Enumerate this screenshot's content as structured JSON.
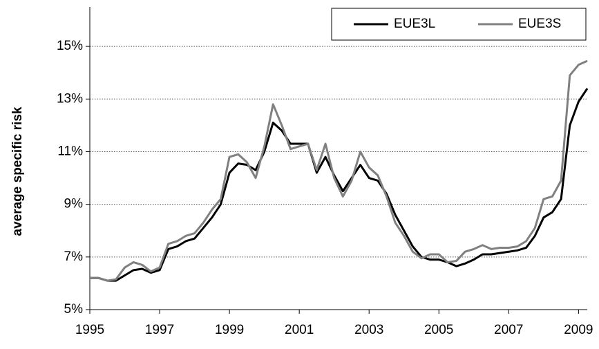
{
  "chart_data": {
    "type": "line",
    "y_label": "average specific risk",
    "x": [
      1995,
      1995.25,
      1995.5,
      1995.75,
      1996,
      1996.25,
      1996.5,
      1996.75,
      1997,
      1997.25,
      1997.5,
      1997.75,
      1998,
      1998.25,
      1998.5,
      1998.75,
      1999,
      1999.25,
      1999.5,
      1999.75,
      2000,
      2000.25,
      2000.5,
      2000.75,
      2001,
      2001.25,
      2001.5,
      2001.75,
      2002,
      2002.25,
      2002.5,
      2002.75,
      2003,
      2003.25,
      2003.5,
      2003.75,
      2004,
      2004.25,
      2004.5,
      2004.75,
      2005,
      2005.25,
      2005.5,
      2005.75,
      2006,
      2006.25,
      2006.5,
      2006.75,
      2007,
      2007.25,
      2007.5,
      2007.75,
      2008,
      2008.25,
      2008.5,
      2008.75,
      2009,
      2009.25
    ],
    "series": [
      {
        "name": "EUE3L",
        "color": "#000000",
        "values": [
          6.2,
          6.2,
          6.1,
          6.1,
          6.3,
          6.5,
          6.55,
          6.4,
          6.5,
          7.3,
          7.4,
          7.6,
          7.7,
          8.1,
          8.5,
          9.0,
          10.2,
          10.55,
          10.5,
          10.3,
          11.0,
          12.1,
          11.8,
          11.3,
          11.3,
          11.3,
          10.2,
          10.8,
          10.1,
          9.5,
          10.0,
          10.5,
          10.0,
          9.9,
          9.4,
          8.6,
          8.0,
          7.4,
          7.0,
          6.9,
          6.9,
          6.8,
          6.65,
          6.75,
          6.9,
          7.1,
          7.1,
          7.15,
          7.2,
          7.25,
          7.35,
          7.8,
          8.5,
          8.7,
          9.2,
          12.0,
          12.9,
          13.4
        ]
      },
      {
        "name": "EUE3S",
        "color": "#808080",
        "values": [
          6.2,
          6.2,
          6.1,
          6.15,
          6.6,
          6.8,
          6.7,
          6.45,
          6.6,
          7.5,
          7.6,
          7.8,
          7.9,
          8.3,
          8.8,
          9.2,
          10.8,
          10.9,
          10.6,
          10.0,
          11.2,
          12.8,
          12.0,
          11.1,
          11.2,
          11.3,
          10.3,
          11.3,
          10.0,
          9.3,
          9.9,
          11.0,
          10.4,
          10.1,
          9.3,
          8.3,
          7.8,
          7.2,
          6.95,
          7.1,
          7.1,
          6.8,
          6.85,
          7.2,
          7.3,
          7.45,
          7.3,
          7.35,
          7.35,
          7.4,
          7.6,
          8.1,
          9.2,
          9.3,
          9.9,
          13.9,
          14.3,
          14.45
        ]
      }
    ],
    "xlim": [
      1995,
      2009.25
    ],
    "xticks": [
      1995,
      1997,
      1999,
      2001,
      2003,
      2005,
      2007,
      2009
    ],
    "ylim": [
      5,
      16.5
    ],
    "yticks": [
      {
        "value": 5,
        "label": "5%"
      },
      {
        "value": 7,
        "label": "7%"
      },
      {
        "value": 9,
        "label": "9%"
      },
      {
        "value": 11,
        "label": "11%"
      },
      {
        "value": 13,
        "label": "13%"
      },
      {
        "value": 15,
        "label": "15%"
      }
    ],
    "grid": true,
    "legend": "top-right"
  }
}
